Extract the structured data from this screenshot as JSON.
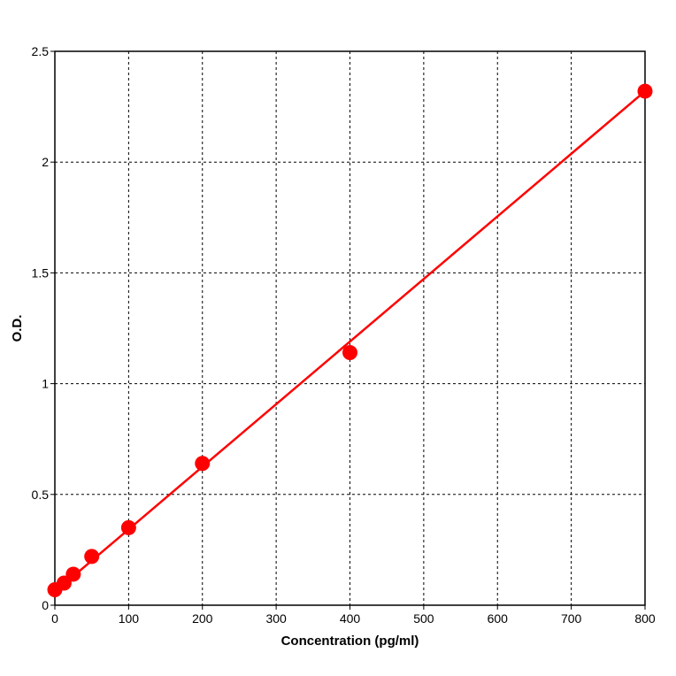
{
  "chart_data": {
    "type": "scatter",
    "title": "",
    "xlabel": "Concentration (pg/ml)",
    "ylabel": "O.D.",
    "xlim": [
      0,
      800
    ],
    "ylim": [
      0,
      2.5
    ],
    "xticks": [
      0,
      100,
      200,
      300,
      400,
      500,
      600,
      700,
      800
    ],
    "yticks": [
      0,
      0.5,
      1,
      1.5,
      2,
      2.5
    ],
    "xtick_labels": [
      "0",
      "100",
      "200",
      "300",
      "400",
      "500",
      "600",
      "700",
      "800"
    ],
    "ytick_labels": [
      "0",
      "0.5",
      "1",
      "1.5",
      "2",
      "2.5"
    ],
    "grid": true,
    "grid_style": "dashed",
    "x": [
      0,
      12.5,
      25,
      50,
      100,
      200,
      400,
      800
    ],
    "y": [
      0.07,
      0.1,
      0.14,
      0.22,
      0.35,
      0.64,
      1.14,
      2.32
    ],
    "fit_line": {
      "x": [
        0,
        800
      ],
      "y": [
        0.06,
        2.32
      ]
    },
    "colors": {
      "marker": "#ff0000",
      "line": "#ff0000",
      "grid": "#000000",
      "frame": "#000000"
    }
  }
}
